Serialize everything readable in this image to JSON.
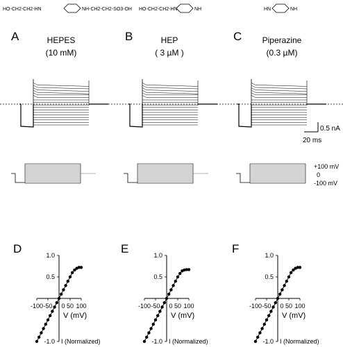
{
  "structures": [
    {
      "label": "HO-CH2-CH2-HN",
      "right": "NH-CH2-CH2-SO3-OH"
    },
    {
      "label": "HO-CH2-CH2-HN",
      "right": "NH"
    },
    {
      "label": "HN",
      "right": "NH"
    }
  ],
  "panels_top": [
    {
      "letter": "A",
      "name": "HEPES",
      "conc": "(10 mM)"
    },
    {
      "letter": "B",
      "name": "HEP",
      "conc": "( 3 µM )"
    },
    {
      "letter": "C",
      "name": "Piperazine",
      "conc": "(0.3 µM)"
    }
  ],
  "scalebar": {
    "current": "0.5 nA",
    "time": "20 ms"
  },
  "voltage_labels": {
    "top": "+100 mV",
    "mid": "0",
    "bottom": "-100 mV"
  },
  "chart_data": [
    {
      "type": "line",
      "panel": "D",
      "xlabel": "V (mV)",
      "ylabel": "I (Normalized)",
      "xlim": [
        -100,
        100
      ],
      "ylim": [
        -1.0,
        1.0
      ],
      "xticks": [
        "-100",
        "-50",
        "0",
        "50",
        "100"
      ],
      "yticks": [
        "1.0",
        "0.5",
        "-1.0"
      ],
      "x": [
        -100,
        -90,
        -80,
        -70,
        -60,
        -50,
        -40,
        -30,
        -20,
        -10,
        0,
        10,
        20,
        30,
        40,
        50,
        60,
        70,
        80,
        90,
        100
      ],
      "values": [
        -1.0,
        -0.9,
        -0.8,
        -0.7,
        -0.6,
        -0.5,
        -0.4,
        -0.3,
        -0.2,
        -0.1,
        0.0,
        0.1,
        0.2,
        0.3,
        0.4,
        0.5,
        0.6,
        0.66,
        0.7,
        0.72,
        0.72
      ]
    },
    {
      "type": "line",
      "panel": "E",
      "xlabel": "V (mV)",
      "ylabel": "I (Normalized)",
      "xlim": [
        -100,
        100
      ],
      "ylim": [
        -1.0,
        1.0
      ],
      "xticks": [
        "-100",
        "-50",
        "0",
        "50",
        "100"
      ],
      "yticks": [
        "1.0",
        "0.5",
        "-1.0"
      ],
      "x": [
        -100,
        -90,
        -80,
        -70,
        -60,
        -50,
        -40,
        -30,
        -20,
        -10,
        0,
        10,
        20,
        30,
        40,
        50,
        60,
        70,
        80,
        90,
        100
      ],
      "values": [
        -1.0,
        -0.9,
        -0.8,
        -0.7,
        -0.6,
        -0.5,
        -0.4,
        -0.3,
        -0.2,
        -0.1,
        0.0,
        0.1,
        0.2,
        0.3,
        0.4,
        0.5,
        0.58,
        0.64,
        0.66,
        0.67,
        0.67
      ]
    },
    {
      "type": "line",
      "panel": "F",
      "xlabel": "V (mV)",
      "ylabel": "I (Normalized)",
      "xlim": [
        -100,
        100
      ],
      "ylim": [
        -1.0,
        1.0
      ],
      "xticks": [
        "-100",
        "-50",
        "0",
        "50",
        "100"
      ],
      "yticks": [
        "1.0",
        "0.5",
        "-1.0"
      ],
      "x": [
        -100,
        -90,
        -80,
        -70,
        -60,
        -50,
        -40,
        -30,
        -20,
        -10,
        0,
        10,
        20,
        30,
        40,
        50,
        60,
        70,
        80,
        90,
        100
      ],
      "values": [
        -1.0,
        -0.9,
        -0.8,
        -0.7,
        -0.6,
        -0.5,
        -0.4,
        -0.3,
        -0.2,
        -0.1,
        0.0,
        0.1,
        0.2,
        0.3,
        0.4,
        0.5,
        0.6,
        0.66,
        0.7,
        0.72,
        0.72
      ]
    }
  ]
}
